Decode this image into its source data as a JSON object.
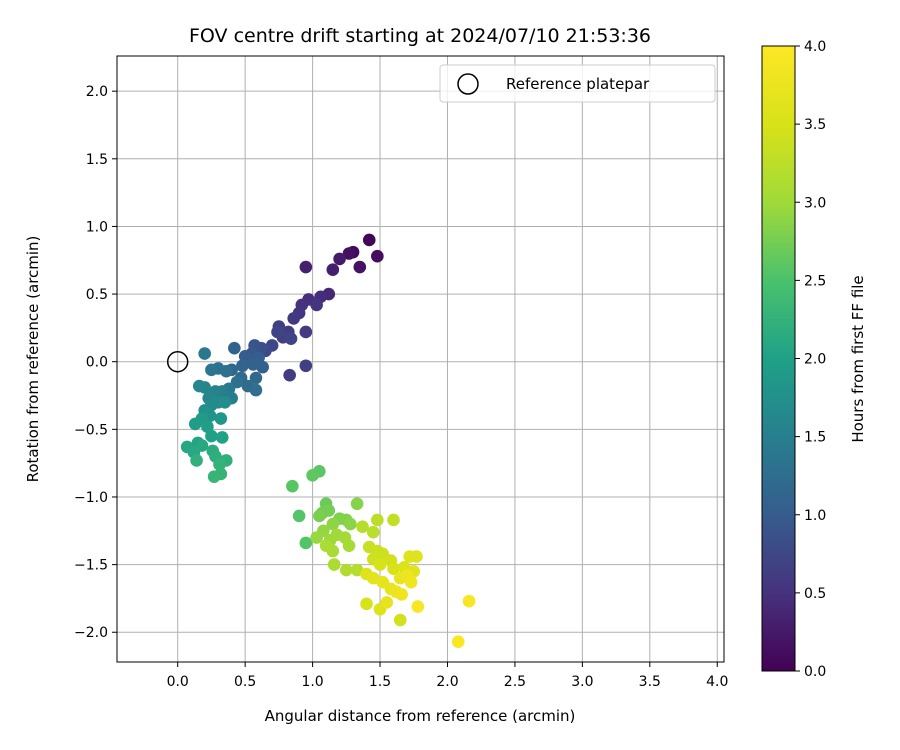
{
  "chart_data": {
    "type": "scatter",
    "title": "FOV centre drift starting at 2024/07/10 21:53:36",
    "xlabel": "Angular distance from reference (arcmin)",
    "ylabel": "Rotation from reference (arcmin)",
    "xlim": [
      -0.45,
      4.05
    ],
    "ylim": [
      -2.22,
      2.26
    ],
    "xticks": [
      "0.0",
      "0.5",
      "1.0",
      "1.5",
      "2.0",
      "2.5",
      "3.0",
      "3.5",
      "4.0"
    ],
    "yticks": [
      "2.0",
      "1.5",
      "1.0",
      "0.5",
      "0.0",
      "−0.5",
      "−1.0",
      "−1.5",
      "−2.0"
    ],
    "grid": true,
    "legend": {
      "placement": "top-right",
      "entries": [
        "Reference platepar"
      ]
    },
    "reference_point": {
      "x": 0.0,
      "y": 0.0
    },
    "colorbar": {
      "label": "Hours from first FF file",
      "range": [
        0.0,
        4.0
      ],
      "colormap": "viridis",
      "ticks": [
        "0.0",
        "0.5",
        "1.0",
        "1.5",
        "2.0",
        "2.5",
        "3.0",
        "3.5",
        "4.0"
      ]
    },
    "points": [
      {
        "x": 1.42,
        "y": 0.9,
        "h": 0.05
      },
      {
        "x": 1.3,
        "y": 0.81,
        "h": 0.1
      },
      {
        "x": 1.27,
        "y": 0.8,
        "h": 0.15
      },
      {
        "x": 1.48,
        "y": 0.78,
        "h": 0.12
      },
      {
        "x": 1.35,
        "y": 0.7,
        "h": 0.18
      },
      {
        "x": 1.2,
        "y": 0.76,
        "h": 0.25
      },
      {
        "x": 1.15,
        "y": 0.68,
        "h": 0.3
      },
      {
        "x": 0.95,
        "y": 0.7,
        "h": 0.32
      },
      {
        "x": 1.12,
        "y": 0.5,
        "h": 0.4
      },
      {
        "x": 1.06,
        "y": 0.48,
        "h": 0.45
      },
      {
        "x": 0.97,
        "y": 0.46,
        "h": 0.48
      },
      {
        "x": 0.92,
        "y": 0.42,
        "h": 0.5
      },
      {
        "x": 1.03,
        "y": 0.42,
        "h": 0.52
      },
      {
        "x": 0.9,
        "y": 0.36,
        "h": 0.55
      },
      {
        "x": 0.86,
        "y": 0.32,
        "h": 0.58
      },
      {
        "x": 0.95,
        "y": 0.22,
        "h": 0.6
      },
      {
        "x": 0.82,
        "y": 0.22,
        "h": 0.62
      },
      {
        "x": 0.75,
        "y": 0.26,
        "h": 0.65
      },
      {
        "x": 0.78,
        "y": 0.18,
        "h": 0.68
      },
      {
        "x": 0.74,
        "y": 0.22,
        "h": 0.7
      },
      {
        "x": 0.84,
        "y": 0.17,
        "h": 0.72
      },
      {
        "x": 0.95,
        "y": -0.03,
        "h": 0.65
      },
      {
        "x": 0.83,
        "y": -0.1,
        "h": 0.62
      },
      {
        "x": 0.7,
        "y": 0.12,
        "h": 0.75
      },
      {
        "x": 0.65,
        "y": 0.08,
        "h": 0.8
      },
      {
        "x": 0.62,
        "y": 0.1,
        "h": 0.85
      },
      {
        "x": 0.57,
        "y": 0.12,
        "h": 0.9
      },
      {
        "x": 0.55,
        "y": 0.06,
        "h": 0.95
      },
      {
        "x": 0.5,
        "y": 0.04,
        "h": 1.0
      },
      {
        "x": 0.6,
        "y": 0.03,
        "h": 1.02
      },
      {
        "x": 0.63,
        "y": -0.04,
        "h": 1.05
      },
      {
        "x": 0.56,
        "y": -0.02,
        "h": 1.08
      },
      {
        "x": 0.42,
        "y": 0.1,
        "h": 1.1
      },
      {
        "x": 0.48,
        "y": -0.03,
        "h": 1.12
      },
      {
        "x": 0.4,
        "y": -0.06,
        "h": 1.15
      },
      {
        "x": 0.58,
        "y": -0.12,
        "h": 1.18
      },
      {
        "x": 0.47,
        "y": -0.12,
        "h": 1.2
      },
      {
        "x": 0.52,
        "y": -0.18,
        "h": 1.22
      },
      {
        "x": 0.58,
        "y": -0.21,
        "h": 1.25
      },
      {
        "x": 0.44,
        "y": -0.15,
        "h": 1.28
      },
      {
        "x": 0.36,
        "y": -0.07,
        "h": 1.3
      },
      {
        "x": 0.3,
        "y": -0.05,
        "h": 1.32
      },
      {
        "x": 0.25,
        "y": -0.06,
        "h": 1.35
      },
      {
        "x": 0.2,
        "y": 0.06,
        "h": 1.4
      },
      {
        "x": 0.38,
        "y": -0.2,
        "h": 1.42
      },
      {
        "x": 0.4,
        "y": -0.27,
        "h": 1.45
      },
      {
        "x": 0.33,
        "y": -0.22,
        "h": 1.5
      },
      {
        "x": 0.28,
        "y": -0.22,
        "h": 1.55
      },
      {
        "x": 0.2,
        "y": -0.19,
        "h": 1.58
      },
      {
        "x": 0.16,
        "y": -0.18,
        "h": 1.6
      },
      {
        "x": 0.23,
        "y": -0.27,
        "h": 1.62
      },
      {
        "x": 0.3,
        "y": -0.3,
        "h": 1.65
      },
      {
        "x": 0.25,
        "y": -0.32,
        "h": 1.68
      },
      {
        "x": 0.35,
        "y": -0.3,
        "h": 1.7
      },
      {
        "x": 0.2,
        "y": -0.36,
        "h": 1.75
      },
      {
        "x": 0.24,
        "y": -0.4,
        "h": 1.8
      },
      {
        "x": 0.32,
        "y": -0.42,
        "h": 1.85
      },
      {
        "x": 0.18,
        "y": -0.42,
        "h": 1.9
      },
      {
        "x": 0.13,
        "y": -0.46,
        "h": 1.92
      },
      {
        "x": 0.22,
        "y": -0.48,
        "h": 1.95
      },
      {
        "x": 0.25,
        "y": -0.55,
        "h": 2.0
      },
      {
        "x": 0.33,
        "y": -0.56,
        "h": 2.02
      },
      {
        "x": 0.15,
        "y": -0.6,
        "h": 2.05
      },
      {
        "x": 0.07,
        "y": -0.63,
        "h": 2.08
      },
      {
        "x": 0.18,
        "y": -0.62,
        "h": 2.1
      },
      {
        "x": 0.12,
        "y": -0.67,
        "h": 2.12
      },
      {
        "x": 0.26,
        "y": -0.66,
        "h": 2.15
      },
      {
        "x": 0.28,
        "y": -0.7,
        "h": 2.18
      },
      {
        "x": 0.36,
        "y": -0.73,
        "h": 2.2
      },
      {
        "x": 0.14,
        "y": -0.73,
        "h": 2.22
      },
      {
        "x": 0.31,
        "y": -0.76,
        "h": 2.25
      },
      {
        "x": 0.32,
        "y": -0.83,
        "h": 2.28
      },
      {
        "x": 0.27,
        "y": -0.85,
        "h": 2.3
      },
      {
        "x": 1.05,
        "y": -0.81,
        "h": 2.6
      },
      {
        "x": 1.0,
        "y": -0.84,
        "h": 2.62
      },
      {
        "x": 0.85,
        "y": -0.92,
        "h": 2.58
      },
      {
        "x": 0.9,
        "y": -1.14,
        "h": 2.55
      },
      {
        "x": 0.95,
        "y": -1.34,
        "h": 2.55
      },
      {
        "x": 1.1,
        "y": -1.05,
        "h": 2.7
      },
      {
        "x": 1.07,
        "y": -1.12,
        "h": 2.72
      },
      {
        "x": 1.12,
        "y": -1.1,
        "h": 2.75
      },
      {
        "x": 1.05,
        "y": -1.14,
        "h": 2.78
      },
      {
        "x": 1.2,
        "y": -1.16,
        "h": 2.8
      },
      {
        "x": 1.25,
        "y": -1.17,
        "h": 2.82
      },
      {
        "x": 1.33,
        "y": -1.05,
        "h": 2.85
      },
      {
        "x": 1.28,
        "y": -1.2,
        "h": 2.88
      },
      {
        "x": 1.15,
        "y": -1.2,
        "h": 2.9
      },
      {
        "x": 1.08,
        "y": -1.25,
        "h": 2.92
      },
      {
        "x": 1.03,
        "y": -1.3,
        "h": 2.95
      },
      {
        "x": 1.13,
        "y": -1.32,
        "h": 2.98
      },
      {
        "x": 1.18,
        "y": -1.28,
        "h": 3.0
      },
      {
        "x": 1.24,
        "y": -1.3,
        "h": 3.02
      },
      {
        "x": 1.27,
        "y": -1.36,
        "h": 3.05
      },
      {
        "x": 1.15,
        "y": -1.4,
        "h": 3.08
      },
      {
        "x": 1.1,
        "y": -1.36,
        "h": 3.1
      },
      {
        "x": 1.16,
        "y": -1.5,
        "h": 3.12
      },
      {
        "x": 1.25,
        "y": -1.54,
        "h": 3.15
      },
      {
        "x": 1.33,
        "y": -1.54,
        "h": 3.18
      },
      {
        "x": 1.37,
        "y": -1.22,
        "h": 3.2
      },
      {
        "x": 1.45,
        "y": -1.26,
        "h": 3.22
      },
      {
        "x": 1.48,
        "y": -1.17,
        "h": 3.25
      },
      {
        "x": 1.6,
        "y": -1.17,
        "h": 3.3
      },
      {
        "x": 1.42,
        "y": -1.37,
        "h": 3.35
      },
      {
        "x": 1.48,
        "y": -1.4,
        "h": 3.38
      },
      {
        "x": 1.52,
        "y": -1.42,
        "h": 3.4
      },
      {
        "x": 1.45,
        "y": -1.46,
        "h": 3.42
      },
      {
        "x": 1.58,
        "y": -1.47,
        "h": 3.45
      },
      {
        "x": 1.5,
        "y": -1.5,
        "h": 3.48
      },
      {
        "x": 1.6,
        "y": -1.53,
        "h": 3.5
      },
      {
        "x": 1.68,
        "y": -1.52,
        "h": 3.55
      },
      {
        "x": 1.72,
        "y": -1.44,
        "h": 3.58
      },
      {
        "x": 1.77,
        "y": -1.44,
        "h": 3.6
      },
      {
        "x": 1.75,
        "y": -1.55,
        "h": 3.62
      },
      {
        "x": 1.4,
        "y": -1.57,
        "h": 3.6
      },
      {
        "x": 1.45,
        "y": -1.6,
        "h": 3.65
      },
      {
        "x": 1.52,
        "y": -1.63,
        "h": 3.68
      },
      {
        "x": 1.58,
        "y": -1.68,
        "h": 3.7
      },
      {
        "x": 1.65,
        "y": -1.6,
        "h": 3.72
      },
      {
        "x": 1.62,
        "y": -1.7,
        "h": 3.75
      },
      {
        "x": 1.7,
        "y": -1.58,
        "h": 3.77
      },
      {
        "x": 1.4,
        "y": -1.79,
        "h": 3.5
      },
      {
        "x": 1.5,
        "y": -1.83,
        "h": 3.55
      },
      {
        "x": 1.65,
        "y": -1.91,
        "h": 3.45
      },
      {
        "x": 1.55,
        "y": -1.78,
        "h": 3.7
      },
      {
        "x": 1.78,
        "y": -1.81,
        "h": 3.9
      },
      {
        "x": 2.16,
        "y": -1.77,
        "h": 3.92
      },
      {
        "x": 2.08,
        "y": -2.07,
        "h": 3.95
      },
      {
        "x": 1.66,
        "y": -1.72,
        "h": 3.8
      },
      {
        "x": 1.73,
        "y": -1.63,
        "h": 3.82
      }
    ]
  }
}
